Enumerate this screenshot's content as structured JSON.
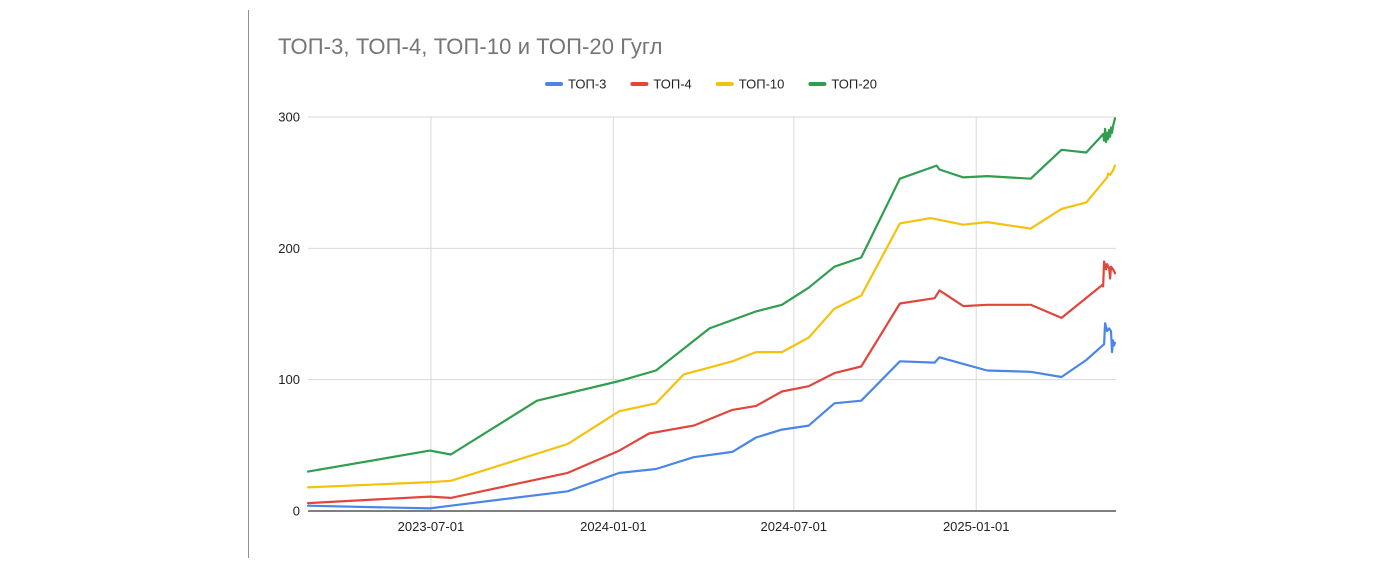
{
  "chart_data": {
    "type": "line",
    "title": "ТОП-3, ТОП-4, ТОП-10 и ТОП-20 Гугл",
    "xlabel": "",
    "ylabel": "",
    "x_axis": "date",
    "xlim": [
      "2023-02-27",
      "2025-05-22"
    ],
    "ylim": [
      0,
      300
    ],
    "y_ticks": [
      0,
      100,
      200,
      300
    ],
    "y_tick_labels": [
      "0",
      "100",
      "200",
      "300"
    ],
    "x_ticks": [
      "2023-07-01",
      "2024-01-01",
      "2024-07-01",
      "2025-01-01"
    ],
    "x_tick_labels": [
      "2023-07-01",
      "2024-01-01",
      "2024-07-01",
      "2025-01-01"
    ],
    "grid": "vertical",
    "legend_position": "top",
    "series": [
      {
        "name": "ТОП-3",
        "color": "#4a86e8",
        "points": [
          [
            "2023-02-27",
            4
          ],
          [
            "2023-06-30",
            2
          ],
          [
            "2023-07-21",
            4
          ],
          [
            "2023-11-16",
            15
          ],
          [
            "2024-01-07",
            29
          ],
          [
            "2024-02-13",
            32
          ],
          [
            "2024-03-22",
            41
          ],
          [
            "2024-04-30",
            45
          ],
          [
            "2024-05-24",
            56
          ],
          [
            "2024-06-19",
            62
          ],
          [
            "2024-07-16",
            65
          ],
          [
            "2024-08-11",
            82
          ],
          [
            "2024-09-07",
            84
          ],
          [
            "2024-10-16",
            114
          ],
          [
            "2024-11-20",
            113
          ],
          [
            "2024-11-25",
            117
          ],
          [
            "2024-12-19",
            112
          ],
          [
            "2025-01-12",
            107
          ],
          [
            "2025-02-25",
            106
          ],
          [
            "2025-03-28",
            102
          ],
          [
            "2025-04-22",
            115
          ],
          [
            "2025-05-10",
            127
          ],
          [
            "2025-05-11",
            143
          ],
          [
            "2025-05-13",
            137
          ],
          [
            "2025-05-15",
            139
          ],
          [
            "2025-05-17",
            137
          ],
          [
            "2025-05-18",
            121
          ],
          [
            "2025-05-19",
            130
          ],
          [
            "2025-05-20",
            126
          ],
          [
            "2025-05-21",
            128
          ]
        ]
      },
      {
        "name": "ТОП-4",
        "color": "#e0463c",
        "points": [
          [
            "2023-02-27",
            6
          ],
          [
            "2023-06-30",
            11
          ],
          [
            "2023-07-21",
            10
          ],
          [
            "2023-11-16",
            29
          ],
          [
            "2024-01-07",
            46
          ],
          [
            "2024-02-06",
            59
          ],
          [
            "2024-03-22",
            65
          ],
          [
            "2024-04-30",
            77
          ],
          [
            "2024-05-24",
            80
          ],
          [
            "2024-06-19",
            91
          ],
          [
            "2024-07-16",
            95
          ],
          [
            "2024-08-11",
            105
          ],
          [
            "2024-09-07",
            110
          ],
          [
            "2024-10-16",
            158
          ],
          [
            "2024-11-20",
            162
          ],
          [
            "2024-11-25",
            168
          ],
          [
            "2024-12-19",
            156
          ],
          [
            "2025-01-12",
            157
          ],
          [
            "2025-02-25",
            157
          ],
          [
            "2025-03-28",
            147
          ],
          [
            "2025-05-08",
            172
          ],
          [
            "2025-05-09",
            171
          ],
          [
            "2025-05-10",
            190
          ],
          [
            "2025-05-12",
            184
          ],
          [
            "2025-05-13",
            188
          ],
          [
            "2025-05-15",
            185
          ],
          [
            "2025-05-16",
            177
          ],
          [
            "2025-05-17",
            186
          ],
          [
            "2025-05-19",
            184
          ],
          [
            "2025-05-21",
            181
          ]
        ]
      },
      {
        "name": "ТОП-10",
        "color": "#f4c20d",
        "points": [
          [
            "2023-02-27",
            18
          ],
          [
            "2023-06-30",
            22
          ],
          [
            "2023-07-21",
            23
          ],
          [
            "2023-11-16",
            51
          ],
          [
            "2024-01-07",
            76
          ],
          [
            "2024-02-13",
            82
          ],
          [
            "2024-03-12",
            104
          ],
          [
            "2024-04-30",
            114
          ],
          [
            "2024-05-24",
            121
          ],
          [
            "2024-06-19",
            121
          ],
          [
            "2024-07-16",
            132
          ],
          [
            "2024-08-11",
            154
          ],
          [
            "2024-09-07",
            164
          ],
          [
            "2024-10-16",
            219
          ],
          [
            "2024-11-16",
            223
          ],
          [
            "2024-12-19",
            218
          ],
          [
            "2025-01-12",
            220
          ],
          [
            "2025-02-25",
            215
          ],
          [
            "2025-03-28",
            230
          ],
          [
            "2025-04-22",
            235
          ],
          [
            "2025-05-13",
            254
          ],
          [
            "2025-05-14",
            257
          ],
          [
            "2025-05-16",
            256
          ],
          [
            "2025-05-18",
            258
          ],
          [
            "2025-05-20",
            261
          ],
          [
            "2025-05-21",
            263
          ]
        ]
      },
      {
        "name": "ТОП-20",
        "color": "#2f9e4f",
        "points": [
          [
            "2023-02-27",
            30
          ],
          [
            "2023-06-30",
            46
          ],
          [
            "2023-07-21",
            43
          ],
          [
            "2023-10-16",
            84
          ],
          [
            "2024-01-07",
            99
          ],
          [
            "2024-02-13",
            107
          ],
          [
            "2024-04-07",
            139
          ],
          [
            "2024-05-24",
            152
          ],
          [
            "2024-06-19",
            157
          ],
          [
            "2024-07-16",
            170
          ],
          [
            "2024-08-11",
            186
          ],
          [
            "2024-09-07",
            193
          ],
          [
            "2024-10-16",
            253
          ],
          [
            "2024-11-22",
            263
          ],
          [
            "2024-11-25",
            260
          ],
          [
            "2024-12-19",
            254
          ],
          [
            "2025-01-12",
            255
          ],
          [
            "2025-02-25",
            253
          ],
          [
            "2025-03-28",
            275
          ],
          [
            "2025-04-22",
            273
          ],
          [
            "2025-05-09",
            287
          ],
          [
            "2025-05-10",
            282
          ],
          [
            "2025-05-11",
            291
          ],
          [
            "2025-05-12",
            281
          ],
          [
            "2025-05-13",
            288
          ],
          [
            "2025-05-14",
            283
          ],
          [
            "2025-05-15",
            290
          ],
          [
            "2025-05-16",
            285
          ],
          [
            "2025-05-17",
            292
          ],
          [
            "2025-05-18",
            288
          ],
          [
            "2025-05-19",
            293
          ],
          [
            "2025-05-20",
            296
          ],
          [
            "2025-05-21",
            299
          ]
        ]
      }
    ]
  }
}
